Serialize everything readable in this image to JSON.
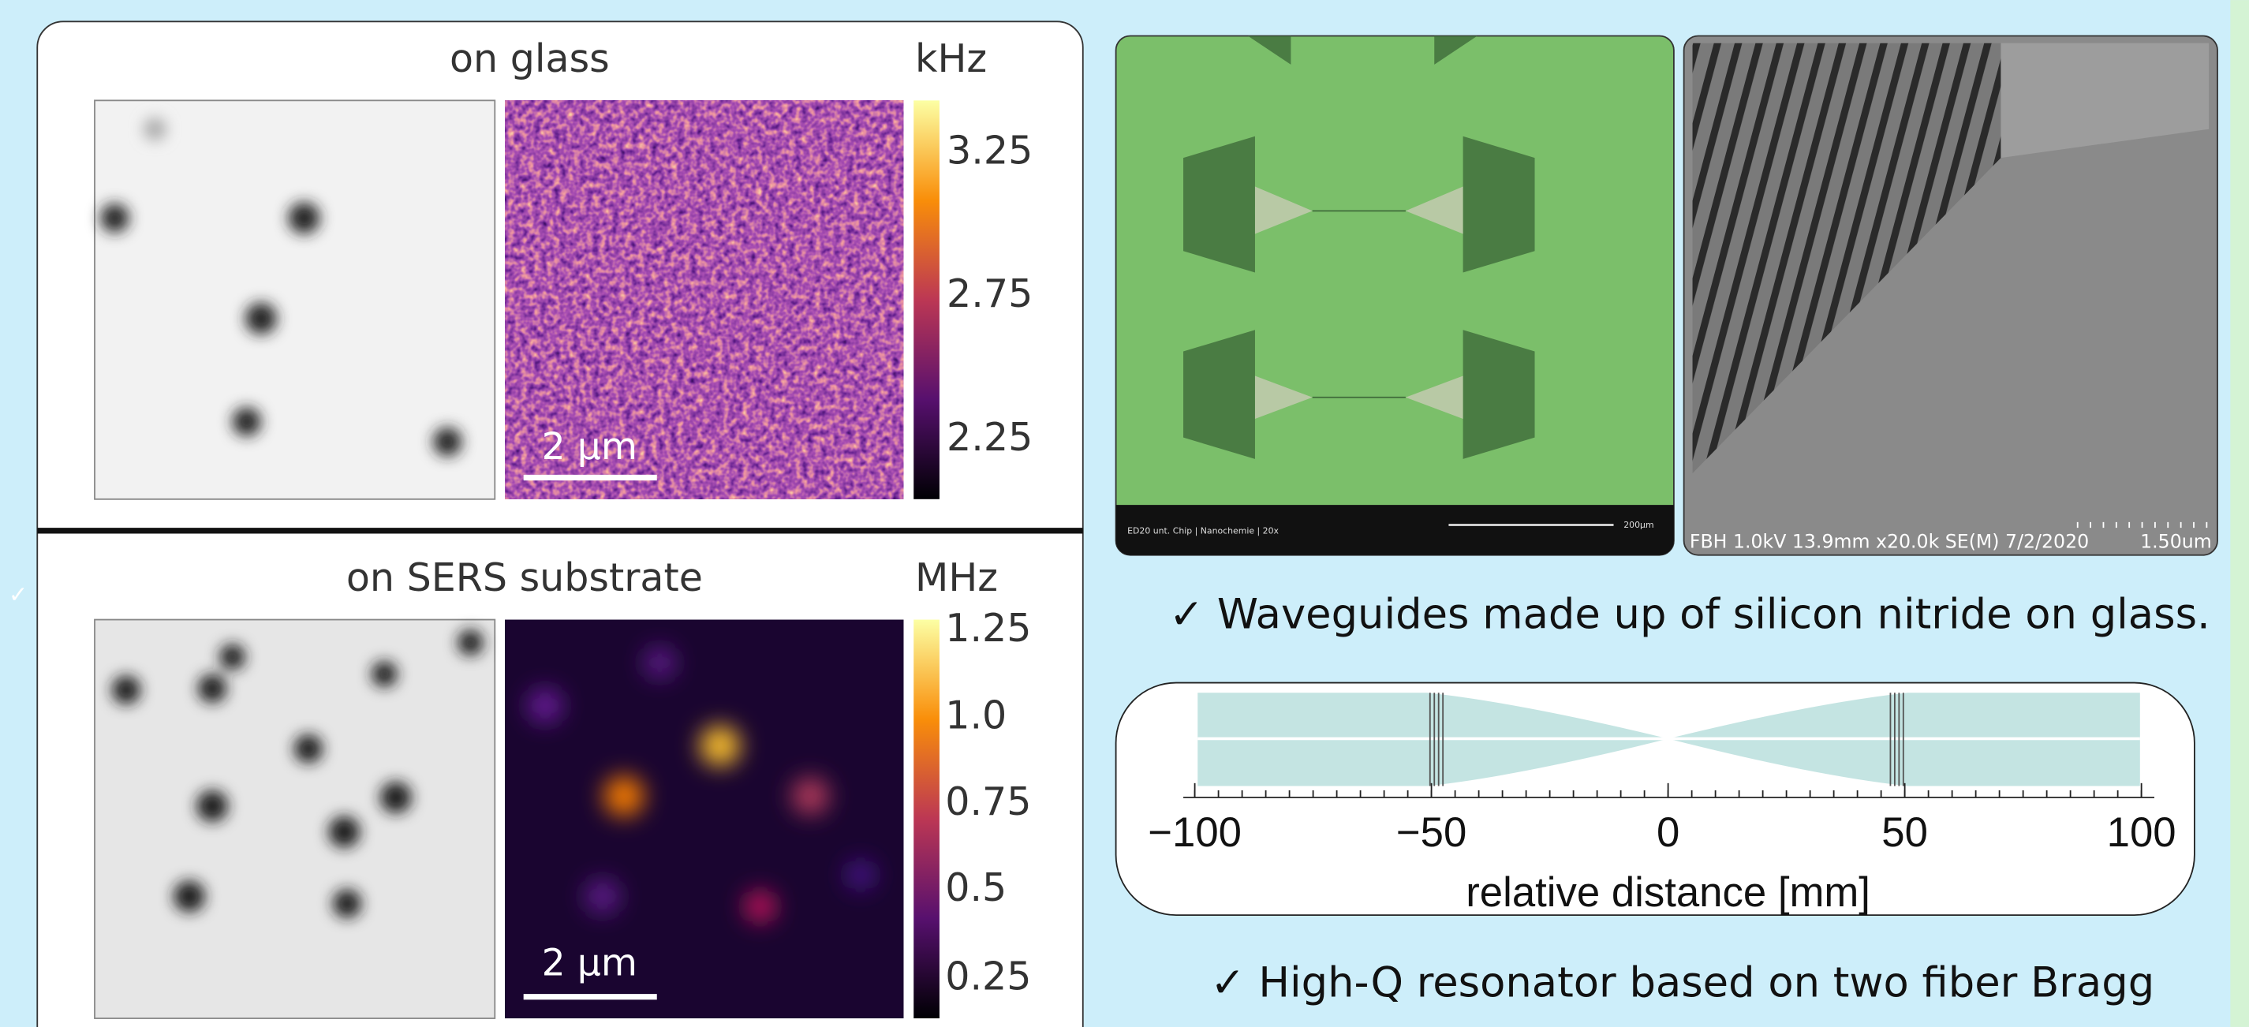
{
  "left_mark": "✓",
  "left_panel": {
    "top": {
      "title": "on glass",
      "unit": "kHz",
      "scale_ticks": [
        "3.25",
        "2.75",
        "2.25"
      ],
      "scale_bar": "2 µm"
    },
    "bottom": {
      "title": "on SERS substrate",
      "unit": "MHz",
      "scale_ticks": [
        "1.25",
        "1.0",
        "0.75",
        "0.5",
        "0.25"
      ],
      "scale_bar": "2 µm"
    }
  },
  "right_panel": {
    "optical_image": {
      "caption": "ED20 unt. Chip | Nanochemie | 20x",
      "scale": "200µm"
    },
    "sem_image": {
      "caption": "FBH 1.0kV 13.9mm x20.0k SE(M) 7/2/2020",
      "scale": "1.50um"
    },
    "bullet_1": "✓ Waveguides made up of silicon nitride on glass.",
    "resonator_plot": {
      "xticks": [
        "−100",
        "−50",
        "0",
        "50",
        "100"
      ],
      "xlabel": "relative distance [mm]"
    },
    "bullet_2": "✓ High-Q resonator based on two fiber Bragg"
  }
}
